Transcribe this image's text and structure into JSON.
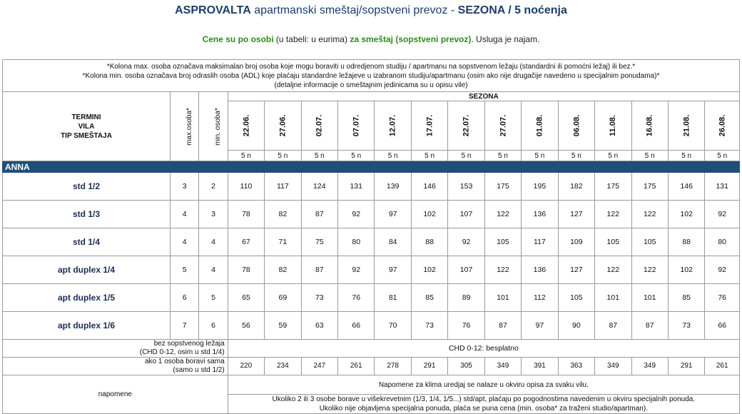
{
  "header": {
    "title_bold": "ASPROVALTA",
    "title_mid": " apartmanski smeštaj/sopstveni prevoz - ",
    "title_bold2": "SEZONA / 5 noćenja",
    "sub_green1": "Cene su po osobi",
    "sub_plain1": " (u tabeli: u eurima) ",
    "sub_green2": "za smeštaj (sopstveni prevoz)",
    "sub_plain2": ". Usluga je najam."
  },
  "notes": {
    "line1": "*Kolona max. osoba označava maksimalan broj osoba koje mogu boraviti u odredjenom studiju / apartmanu na sopstvenom ležaju (standardni ili pomoćni ležaj) ili bez.*",
    "line2": "*Kolona min. osoba označava broj odraslih osoba (ADL) koje plaćaju standardne ležajeve u izabranom studiju/apartmanu (osim ako nije drugačije navedeno u specijalnim ponudama)*",
    "line3": "(detaljne informacije o smeštajnim jedinicama su u opisu vile)"
  },
  "table": {
    "col_label_1": "TERMINI",
    "col_label_2": "VILA",
    "col_label_3": "TIP SMEŠTAJA",
    "max_label": "max.osoba*",
    "min_label": "min. osoba*",
    "season_label": "SEZONA",
    "dates": [
      "22.06.",
      "27.06.",
      "02.07.",
      "07.07.",
      "12.07.",
      "17.07.",
      "22.07.",
      "27.07.",
      "01.08.",
      "06.08.",
      "11.08.",
      "16.08.",
      "21.08.",
      "26.08."
    ],
    "nights": [
      "5 n",
      "5 n",
      "5 n",
      "5 n",
      "5 n",
      "5 n",
      "5 n",
      "5 n",
      "5 n",
      "5 n",
      "5 n",
      "5 n",
      "5 n",
      "5 n"
    ],
    "villa": "ANNA",
    "rows": [
      {
        "type": "std 1/2",
        "max": "3",
        "min": "2",
        "prices": [
          "110",
          "117",
          "124",
          "131",
          "139",
          "146",
          "153",
          "175",
          "195",
          "182",
          "175",
          "175",
          "146",
          "131"
        ]
      },
      {
        "type": "std 1/3",
        "max": "4",
        "min": "3",
        "prices": [
          "78",
          "82",
          "87",
          "92",
          "97",
          "102",
          "107",
          "122",
          "136",
          "127",
          "122",
          "122",
          "102",
          "92"
        ]
      },
      {
        "type": "std 1/4",
        "max": "4",
        "min": "4",
        "prices": [
          "67",
          "71",
          "75",
          "80",
          "84",
          "88",
          "92",
          "105",
          "117",
          "109",
          "105",
          "105",
          "88",
          "80"
        ]
      },
      {
        "type": "apt duplex 1/4",
        "max": "5",
        "min": "4",
        "prices": [
          "78",
          "82",
          "87",
          "92",
          "97",
          "102",
          "107",
          "122",
          "136",
          "127",
          "122",
          "122",
          "102",
          "92"
        ]
      },
      {
        "type": "apt duplex 1/5",
        "max": "6",
        "min": "5",
        "prices": [
          "65",
          "69",
          "73",
          "76",
          "81",
          "85",
          "89",
          "101",
          "112",
          "105",
          "101",
          "101",
          "85",
          "76"
        ]
      },
      {
        "type": "apt duplex 1/6",
        "max": "7",
        "min": "6",
        "prices": [
          "56",
          "59",
          "63",
          "66",
          "70",
          "73",
          "76",
          "87",
          "97",
          "90",
          "87",
          "87",
          "73",
          "66"
        ]
      }
    ],
    "chd_label_1": "bez sopstvenog ležaja",
    "chd_label_2": "(CHD 0-12, osim u std 1/4)",
    "chd_value": "CHD 0-12: besplatno",
    "single_label_1": "ako 1 osoba boravi sama",
    "single_label_2": "(samo u std 1/2)",
    "single_prices": [
      "220",
      "234",
      "247",
      "261",
      "278",
      "291",
      "305",
      "349",
      "391",
      "363",
      "349",
      "349",
      "291",
      "261"
    ],
    "napomene_label": "napomene",
    "napomene_1": "Napomene za klima uredjaj se nalaze u okviru opisa za svaku vilu.",
    "napomene_2a": "Ukoliko 2 ili 3 osobe borave u višekrevetnim (1/3, 1/4, 1/5...) std/apt, plaćaju po pogodnostima navedenim u okviru specijalnih ponuda.",
    "napomene_2b": "Ukoliko nije objavljena specijalna ponuda, plaća se puna cena (min. osoba* za traženi studio/apartman)."
  }
}
